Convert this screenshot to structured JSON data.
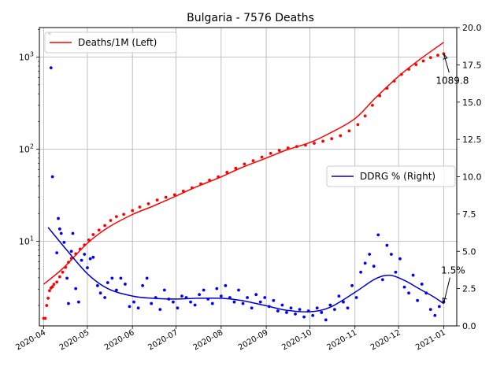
{
  "chart_data": {
    "type": "line",
    "title": "Bulgaria - 7576 Deaths",
    "x_ticks": [
      "2020-04",
      "2020-05",
      "2020-06",
      "2020-07",
      "2020-08",
      "2020-09",
      "2020-10",
      "2020-11",
      "2020-12",
      "2021-01"
    ],
    "xlim": [
      "2020-03-29",
      "2021-01-10"
    ],
    "left_axis": {
      "scale": "log",
      "ylim": [
        1.2,
        2100
      ],
      "major_ticks": [
        10,
        100,
        1000
      ],
      "tick_labels": [
        "10^1",
        "10^2",
        "10^3"
      ]
    },
    "right_axis": {
      "scale": "linear",
      "ylim": [
        0,
        20
      ],
      "ticks": [
        "0.0",
        "2.5",
        "5.0",
        "7.5",
        "10.0",
        "12.5",
        "15.0",
        "17.5",
        "20.0"
      ]
    },
    "grid": true,
    "legends": [
      {
        "label": "Deaths/1M (Left)",
        "placement": "upper-left",
        "series": "deaths_fit"
      },
      {
        "label": "DDRG % (Right)",
        "placement": "center-right",
        "series": "ddrg_fit"
      }
    ],
    "series": [
      {
        "name": "Deaths/1M (Left)",
        "axis": "left",
        "style": "line",
        "color": "#ff0000",
        "points": [
          [
            "2020-04-01",
            3.4
          ],
          [
            "2020-04-15",
            5.2
          ],
          [
            "2020-05-01",
            9.5
          ],
          [
            "2020-05-15",
            14
          ],
          [
            "2020-06-01",
            19.5
          ],
          [
            "2020-06-15",
            24
          ],
          [
            "2020-07-01",
            31
          ],
          [
            "2020-07-15",
            39
          ],
          [
            "2020-08-01",
            50
          ],
          [
            "2020-08-15",
            63
          ],
          [
            "2020-09-01",
            80
          ],
          [
            "2020-09-15",
            98
          ],
          [
            "2020-10-01",
            118
          ],
          [
            "2020-10-15",
            150
          ],
          [
            "2020-11-01",
            215
          ],
          [
            "2020-11-15",
            360
          ],
          [
            "2020-12-01",
            620
          ],
          [
            "2020-12-15",
            930
          ],
          [
            "2021-01-01",
            1450
          ]
        ]
      },
      {
        "name": "deaths_daily",
        "axis": "left",
        "style": "points",
        "color": "#ff0000",
        "points": [
          [
            "2020-04-01",
            1.45
          ],
          [
            "2020-04-02",
            1.45
          ],
          [
            "2020-04-03",
            2.0
          ],
          [
            "2020-04-04",
            2.4
          ],
          [
            "2020-04-05",
            2.9
          ],
          [
            "2020-04-06",
            3.1
          ],
          [
            "2020-04-07",
            3.2
          ],
          [
            "2020-04-08",
            3.4
          ],
          [
            "2020-04-10",
            3.6
          ],
          [
            "2020-04-12",
            4.1
          ],
          [
            "2020-04-14",
            4.6
          ],
          [
            "2020-04-16",
            5.2
          ],
          [
            "2020-04-18",
            5.9
          ],
          [
            "2020-04-20",
            6.5
          ],
          [
            "2020-04-23",
            7.3
          ],
          [
            "2020-04-26",
            8.2
          ],
          [
            "2020-04-29",
            9.1
          ],
          [
            "2020-05-02",
            10.3
          ],
          [
            "2020-05-05",
            11.8
          ],
          [
            "2020-05-09",
            13.2
          ],
          [
            "2020-05-13",
            14.8
          ],
          [
            "2020-05-17",
            16.8
          ],
          [
            "2020-05-21",
            18.5
          ],
          [
            "2020-05-26",
            19.6
          ],
          [
            "2020-06-01",
            21.5
          ],
          [
            "2020-06-06",
            23.5
          ],
          [
            "2020-06-12",
            25.5
          ],
          [
            "2020-06-18",
            28
          ],
          [
            "2020-06-24",
            30
          ],
          [
            "2020-06-30",
            32
          ],
          [
            "2020-07-06",
            35
          ],
          [
            "2020-07-12",
            38
          ],
          [
            "2020-07-18",
            42
          ],
          [
            "2020-07-24",
            46
          ],
          [
            "2020-07-30",
            50
          ],
          [
            "2020-08-05",
            56
          ],
          [
            "2020-08-11",
            62
          ],
          [
            "2020-08-17",
            69
          ],
          [
            "2020-08-23",
            75
          ],
          [
            "2020-08-29",
            82
          ],
          [
            "2020-09-04",
            90
          ],
          [
            "2020-09-10",
            97
          ],
          [
            "2020-09-16",
            103
          ],
          [
            "2020-09-22",
            107
          ],
          [
            "2020-09-28",
            111
          ],
          [
            "2020-10-04",
            116
          ],
          [
            "2020-10-10",
            122
          ],
          [
            "2020-10-16",
            130
          ],
          [
            "2020-10-22",
            140
          ],
          [
            "2020-10-28",
            158
          ],
          [
            "2020-11-03",
            185
          ],
          [
            "2020-11-08",
            230
          ],
          [
            "2020-11-13",
            300
          ],
          [
            "2020-11-18",
            380
          ],
          [
            "2020-11-23",
            460
          ],
          [
            "2020-11-28",
            550
          ],
          [
            "2020-12-03",
            650
          ],
          [
            "2020-12-08",
            740
          ],
          [
            "2020-12-13",
            830
          ],
          [
            "2020-12-18",
            910
          ],
          [
            "2020-12-23",
            990
          ],
          [
            "2020-12-28",
            1050
          ],
          [
            "2021-01-01",
            1089.8
          ]
        ]
      },
      {
        "name": "DDRG % (Right)",
        "axis": "right",
        "style": "line",
        "color": "#0000cc",
        "points": [
          [
            "2020-04-04",
            6.6
          ],
          [
            "2020-04-15",
            5.3
          ],
          [
            "2020-05-01",
            3.5
          ],
          [
            "2020-05-15",
            2.5
          ],
          [
            "2020-06-01",
            2.0
          ],
          [
            "2020-06-15",
            1.85
          ],
          [
            "2020-07-01",
            1.8
          ],
          [
            "2020-07-15",
            1.85
          ],
          [
            "2020-08-01",
            1.85
          ],
          [
            "2020-08-15",
            1.7
          ],
          [
            "2020-09-01",
            1.35
          ],
          [
            "2020-09-15",
            1.05
          ],
          [
            "2020-10-01",
            0.95
          ],
          [
            "2020-10-15",
            1.25
          ],
          [
            "2020-11-01",
            2.25
          ],
          [
            "2020-11-15",
            3.15
          ],
          [
            "2020-11-25",
            3.4
          ],
          [
            "2020-12-05",
            3.05
          ],
          [
            "2020-12-15",
            2.5
          ],
          [
            "2020-12-25",
            1.95
          ],
          [
            "2021-01-01",
            1.5
          ]
        ]
      },
      {
        "name": "ddrg_daily",
        "axis": "right",
        "style": "points",
        "color": "#0000ff",
        "points": [
          [
            "2020-04-05",
            19.6
          ],
          [
            "2020-04-06",
            17.3
          ],
          [
            "2020-04-07",
            10.0
          ],
          [
            "2020-04-10",
            4.9
          ],
          [
            "2020-04-11",
            7.2
          ],
          [
            "2020-04-12",
            6.5
          ],
          [
            "2020-04-13",
            6.2
          ],
          [
            "2020-04-15",
            5.6
          ],
          [
            "2020-04-17",
            3.2
          ],
          [
            "2020-04-18",
            1.5
          ],
          [
            "2020-04-20",
            5.0
          ],
          [
            "2020-04-21",
            6.2
          ],
          [
            "2020-04-23",
            2.5
          ],
          [
            "2020-04-25",
            1.6
          ],
          [
            "2020-04-27",
            4.4
          ],
          [
            "2020-04-29",
            4.8
          ],
          [
            "2020-05-01",
            3.9
          ],
          [
            "2020-05-03",
            4.5
          ],
          [
            "2020-05-05",
            4.6
          ],
          [
            "2020-05-08",
            2.7
          ],
          [
            "2020-05-10",
            2.2
          ],
          [
            "2020-05-13",
            1.9
          ],
          [
            "2020-05-15",
            2.9
          ],
          [
            "2020-05-18",
            3.2
          ],
          [
            "2020-05-21",
            2.4
          ],
          [
            "2020-05-24",
            3.2
          ],
          [
            "2020-05-27",
            2.8
          ],
          [
            "2020-05-30",
            1.3
          ],
          [
            "2020-06-02",
            1.6
          ],
          [
            "2020-06-05",
            1.2
          ],
          [
            "2020-06-08",
            2.7
          ],
          [
            "2020-06-11",
            3.2
          ],
          [
            "2020-06-14",
            1.5
          ],
          [
            "2020-06-17",
            1.9
          ],
          [
            "2020-06-20",
            1.1
          ],
          [
            "2020-06-23",
            2.4
          ],
          [
            "2020-06-26",
            1.8
          ],
          [
            "2020-06-29",
            1.6
          ],
          [
            "2020-07-02",
            1.2
          ],
          [
            "2020-07-05",
            2.0
          ],
          [
            "2020-07-08",
            1.9
          ],
          [
            "2020-07-11",
            1.6
          ],
          [
            "2020-07-14",
            1.4
          ],
          [
            "2020-07-17",
            2.1
          ],
          [
            "2020-07-20",
            2.4
          ],
          [
            "2020-07-23",
            1.8
          ],
          [
            "2020-07-26",
            1.5
          ],
          [
            "2020-07-29",
            2.5
          ],
          [
            "2020-08-01",
            2.0
          ],
          [
            "2020-08-04",
            2.7
          ],
          [
            "2020-08-07",
            1.9
          ],
          [
            "2020-08-10",
            1.6
          ],
          [
            "2020-08-13",
            2.4
          ],
          [
            "2020-08-16",
            1.5
          ],
          [
            "2020-08-19",
            1.9
          ],
          [
            "2020-08-22",
            1.2
          ],
          [
            "2020-08-25",
            2.1
          ],
          [
            "2020-08-28",
            1.6
          ],
          [
            "2020-08-31",
            1.9
          ],
          [
            "2020-09-03",
            1.3
          ],
          [
            "2020-09-06",
            1.7
          ],
          [
            "2020-09-09",
            1.0
          ],
          [
            "2020-09-12",
            1.4
          ],
          [
            "2020-09-15",
            0.9
          ],
          [
            "2020-09-18",
            1.2
          ],
          [
            "2020-09-21",
            0.8
          ],
          [
            "2020-09-24",
            1.1
          ],
          [
            "2020-09-27",
            0.6
          ],
          [
            "2020-09-30",
            1.0
          ],
          [
            "2020-10-03",
            0.7
          ],
          [
            "2020-10-06",
            1.2
          ],
          [
            "2020-10-09",
            0.9
          ],
          [
            "2020-10-12",
            0.4
          ],
          [
            "2020-10-15",
            1.4
          ],
          [
            "2020-10-18",
            1.1
          ],
          [
            "2020-10-21",
            2.0
          ],
          [
            "2020-10-24",
            1.6
          ],
          [
            "2020-10-27",
            1.2
          ],
          [
            "2020-10-30",
            2.7
          ],
          [
            "2020-11-02",
            1.9
          ],
          [
            "2020-11-05",
            3.6
          ],
          [
            "2020-11-08",
            4.2
          ],
          [
            "2020-11-11",
            4.8
          ],
          [
            "2020-11-14",
            4.0
          ],
          [
            "2020-11-17",
            6.1
          ],
          [
            "2020-11-20",
            3.1
          ],
          [
            "2020-11-23",
            5.4
          ],
          [
            "2020-11-26",
            4.8
          ],
          [
            "2020-11-29",
            3.6
          ],
          [
            "2020-12-02",
            4.5
          ],
          [
            "2020-12-05",
            2.6
          ],
          [
            "2020-12-08",
            2.2
          ],
          [
            "2020-12-11",
            3.4
          ],
          [
            "2020-12-14",
            1.7
          ],
          [
            "2020-12-17",
            2.8
          ],
          [
            "2020-12-20",
            2.2
          ],
          [
            "2020-12-23",
            1.1
          ],
          [
            "2020-12-26",
            0.7
          ],
          [
            "2020-12-29",
            1.3
          ],
          [
            "2021-01-01",
            1.6
          ]
        ]
      }
    ],
    "annotations": [
      {
        "text": "1089.8",
        "target": [
          "2021-01-01",
          1089.8
        ],
        "axis": "left"
      },
      {
        "text": "1.5%",
        "target": [
          "2021-01-01",
          1.5
        ],
        "axis": "right"
      }
    ]
  }
}
